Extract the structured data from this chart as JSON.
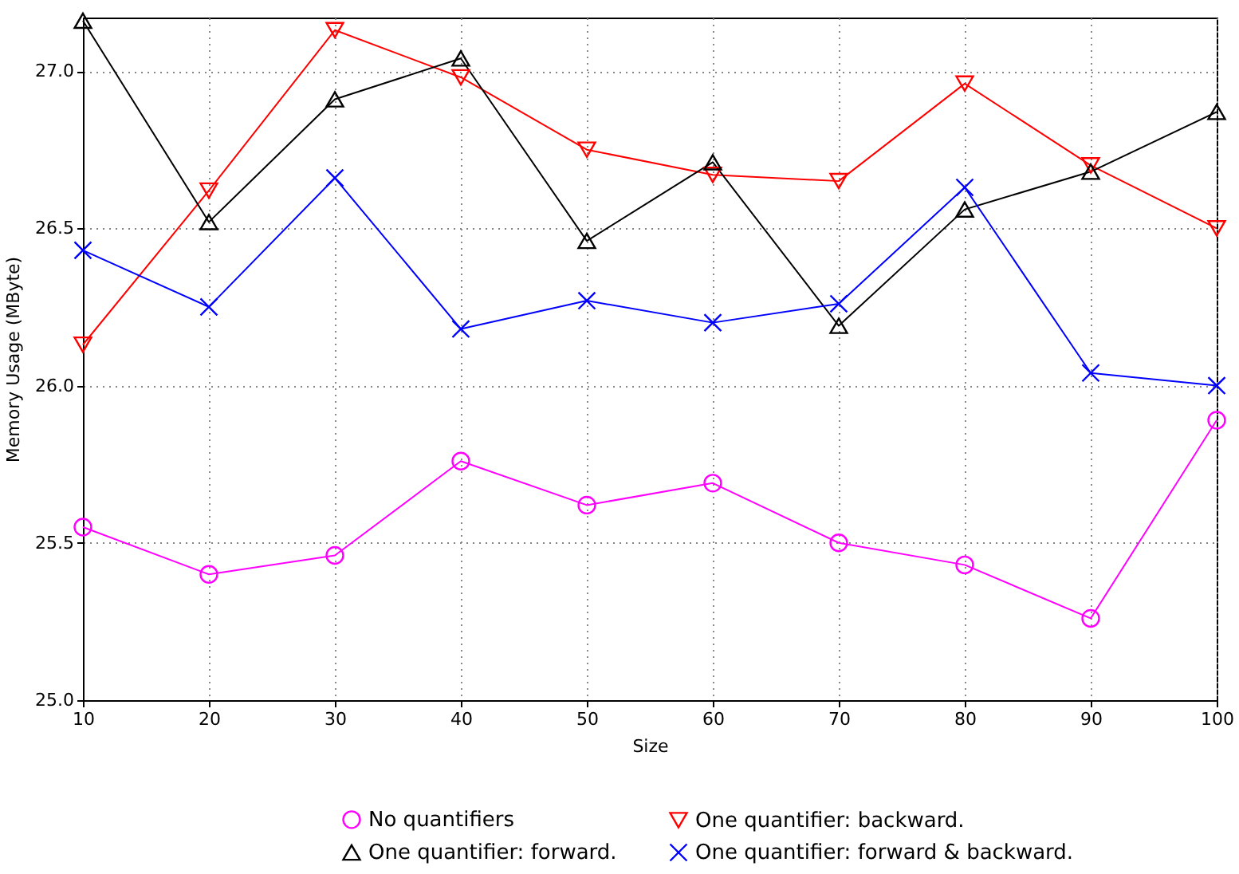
{
  "chart_data": {
    "type": "line",
    "xlabel": "Size",
    "ylabel": "Memory Usage (MByte)",
    "x": [
      10,
      20,
      30,
      40,
      50,
      60,
      70,
      80,
      90,
      100
    ],
    "series": [
      {
        "name": "No quantifiers",
        "color": "#ff00ff",
        "marker": "circle",
        "values": [
          25.55,
          25.4,
          25.46,
          25.76,
          25.62,
          25.69,
          25.5,
          25.43,
          25.26,
          25.89
        ]
      },
      {
        "name": "One quantifier: backward.",
        "color": "#ff0000",
        "marker": "triangle-down",
        "values": [
          26.13,
          26.62,
          27.13,
          26.98,
          26.75,
          26.67,
          26.65,
          26.96,
          26.7,
          26.5
        ]
      },
      {
        "name": "One quantifier: forward.",
        "color": "#000000",
        "marker": "triangle",
        "values": [
          27.16,
          26.52,
          26.91,
          27.04,
          26.46,
          26.71,
          26.19,
          26.56,
          26.68,
          26.87
        ]
      },
      {
        "name": "One quantifier: forward & backward.",
        "color": "#0000ff",
        "marker": "cross",
        "values": [
          26.43,
          26.25,
          26.66,
          26.18,
          26.27,
          26.2,
          26.26,
          26.63,
          26.04,
          26.0
        ]
      }
    ],
    "xlim": [
      10,
      100
    ],
    "xticks": [
      10,
      20,
      30,
      40,
      50,
      60,
      70,
      80,
      90,
      100
    ],
    "ylim": [
      25,
      27.17
    ],
    "yticks": [
      {
        "value": 25,
        "label": "25.0"
      },
      {
        "value": 25.5,
        "label": "25.5"
      },
      {
        "value": 26,
        "label": "26.0"
      },
      {
        "value": 26.5,
        "label": "26.5"
      },
      {
        "value": 27,
        "label": "27.0"
      }
    ],
    "grid": true,
    "legend": "bottom",
    "line_style": "solid"
  }
}
